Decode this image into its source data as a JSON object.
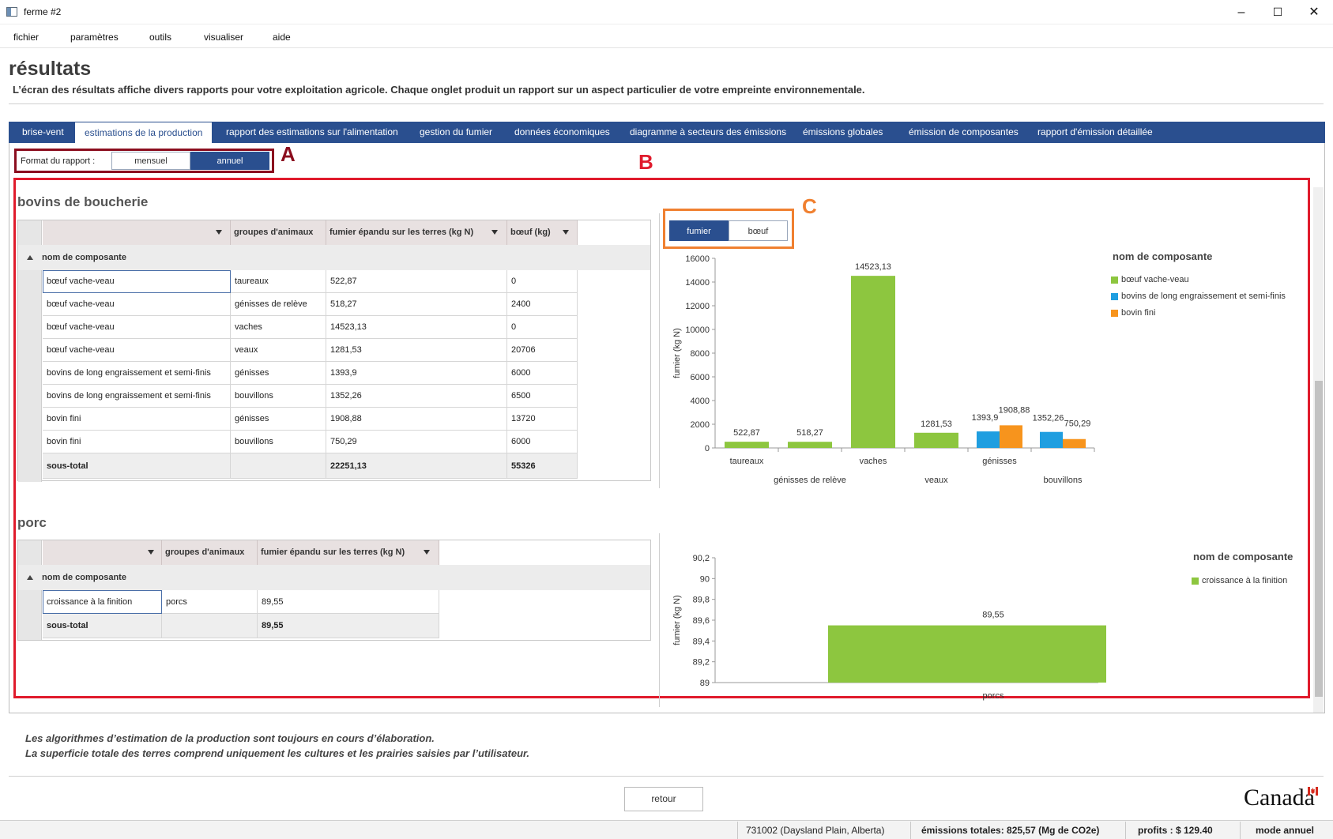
{
  "window": {
    "title": "ferme #2",
    "controls": {
      "minimize": "–",
      "maximize": "☐",
      "close": "✕"
    }
  },
  "menu": [
    "fichier",
    "paramètres",
    "outils",
    "visualiser",
    "aide"
  ],
  "page": {
    "title": "résultats",
    "description": "L’écran des résultats affiche divers rapports pour votre exploitation agricole. Chaque onglet produit un rapport sur un aspect particulier de votre empreinte environnementale."
  },
  "tabs": [
    {
      "label": "brise-vent",
      "active": false
    },
    {
      "label": "estimations de la production",
      "active": true
    },
    {
      "label": "rapport des estimations sur l'alimentation",
      "active": false
    },
    {
      "label": "gestion du fumier",
      "active": false
    },
    {
      "label": "données économiques",
      "active": false
    },
    {
      "label": "diagramme à secteurs des émissions",
      "active": false
    },
    {
      "label": "émissions globales",
      "active": false
    },
    {
      "label": "émission de composantes",
      "active": false
    },
    {
      "label": "rapport d'émission détaillée",
      "active": false
    }
  ],
  "report_format": {
    "label": "Format du rapport :",
    "options": [
      "mensuel",
      "annuel"
    ],
    "selected": "annuel"
  },
  "annotations": {
    "a": "A",
    "b": "B",
    "c": "C"
  },
  "beef": {
    "title": "bovins de boucherie",
    "columns": [
      "groupes d'animaux",
      "fumier épandu sur les terres (kg N)",
      "bœuf (kg)"
    ],
    "group_header": "nom de composante",
    "rows": [
      [
        "bœuf vache-veau",
        "taureaux",
        "522,87",
        "0"
      ],
      [
        "bœuf vache-veau",
        "génisses de relève",
        "518,27",
        "2400"
      ],
      [
        "bœuf vache-veau",
        "vaches",
        "14523,13",
        "0"
      ],
      [
        "bœuf vache-veau",
        "veaux",
        "1281,53",
        "20706"
      ],
      [
        "bovins de long engraissement et semi-finis",
        "génisses",
        "1393,9",
        "6000"
      ],
      [
        "bovins de long engraissement et semi-finis",
        "bouvillons",
        "1352,26",
        "6500"
      ],
      [
        "bovin fini",
        "génisses",
        "1908,88",
        "13720"
      ],
      [
        "bovin fini",
        "bouvillons",
        "750,29",
        "6000"
      ]
    ],
    "subtotal": [
      "sous-total",
      "",
      "22251,13",
      "55326"
    ],
    "chart_toggle": {
      "options": [
        "fumier",
        "bœuf"
      ],
      "selected": "fumier"
    }
  },
  "pork": {
    "title": "porc",
    "columns": [
      "groupes d'animaux",
      "fumier épandu sur les terres (kg N)"
    ],
    "group_header": "nom de composante",
    "rows": [
      [
        "croissance à la finition",
        "porcs",
        "89,55"
      ]
    ],
    "subtotal": [
      "sous-total",
      "",
      "89,55"
    ]
  },
  "chart_data": [
    {
      "type": "bar",
      "ylabel": "fumier (kg N)",
      "ylim": [
        0,
        16000
      ],
      "yticks": [
        "0",
        "2000",
        "4000",
        "6000",
        "8000",
        "10000",
        "12000",
        "14000",
        "16000"
      ],
      "categories": [
        "taureaux",
        "génisses de relève",
        "vaches",
        "veaux",
        "génisses",
        "bouvillons"
      ],
      "legend_title": "nom de composante",
      "series": [
        {
          "name": "bœuf vache-veau",
          "color": "#8dc63f",
          "values": [
            522.87,
            518.27,
            14523.13,
            1281.53,
            null,
            null
          ],
          "labels": [
            "522,87",
            "518,27",
            "14523,13",
            "1281,53",
            "",
            ""
          ]
        },
        {
          "name": "bovins de long engraissement et semi-finis",
          "color": "#1f9ee0",
          "values": [
            null,
            null,
            null,
            null,
            1393.9,
            1352.26
          ],
          "labels": [
            "",
            "",
            "",
            "",
            "1393,9",
            "1352,26"
          ]
        },
        {
          "name": "bovin fini",
          "color": "#f7941d",
          "values": [
            null,
            null,
            null,
            null,
            1908.88,
            750.29
          ],
          "labels": [
            "",
            "",
            "",
            "",
            "1908,88",
            "750,29"
          ]
        }
      ]
    },
    {
      "type": "bar",
      "ylabel": "fumier (kg N)",
      "ylim": [
        89,
        90.2
      ],
      "yticks": [
        "89",
        "89,2",
        "89,4",
        "89,6",
        "89,8",
        "90",
        "90,2"
      ],
      "categories": [
        "porcs"
      ],
      "legend_title": "nom de composante",
      "series": [
        {
          "name": "croissance à la finition",
          "color": "#8dc63f",
          "values": [
            89.55
          ],
          "labels": [
            "89,55"
          ]
        }
      ]
    }
  ],
  "notes": [
    "Les algorithmes d’estimation de la production sont toujours en cours d’élaboration.",
    "La superficie totale des terres comprend uniquement les cultures et les prairies saisies par l’utilisateur."
  ],
  "buttons": {
    "back": "retour"
  },
  "brand": "Canada",
  "status": {
    "location": "731002 (Daysland Plain, Alberta)",
    "emissions": "émissions totales: 825,57 (Mg de CO2e)",
    "profits": "profits : $ 129.40",
    "mode": "mode annuel"
  }
}
